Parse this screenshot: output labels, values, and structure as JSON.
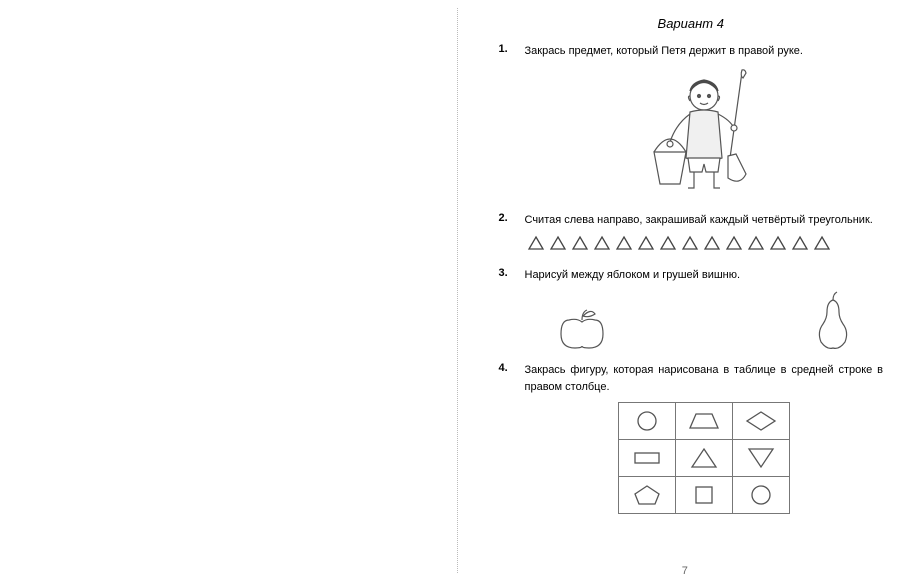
{
  "header": {
    "variant": "Вариант  4"
  },
  "tasks": {
    "t1": {
      "num": "1.",
      "text": "Закрась предмет, который Петя держит в правой руке."
    },
    "t2": {
      "num": "2.",
      "text": "Считая слева направо, закрашивай каждый четвёртый треугольник."
    },
    "t3": {
      "num": "3.",
      "text": "Нарисуй между яблоком и грушей вишню."
    },
    "t4": {
      "num": "4.",
      "text": "Закрась фигуру, которая нарисована в таблице в средней строке в правом столбце."
    }
  },
  "triangles": {
    "count": 14,
    "stroke": "#444444",
    "fill": "#ffffff",
    "width": 18,
    "height": 16
  },
  "shape_grid": {
    "rows": 3,
    "cols": 3,
    "stroke": "#555555",
    "shapes": [
      [
        "circle",
        "trapezoid",
        "rhombus"
      ],
      [
        "rectangle",
        "triangle",
        "triangle-down"
      ],
      [
        "pentagon",
        "square",
        "circle"
      ]
    ]
  },
  "page_number": "7",
  "colors": {
    "outline": "#555555",
    "hair": "#4a4a4a",
    "skin": "#ffffff",
    "shirt": "#e8e8e8"
  }
}
